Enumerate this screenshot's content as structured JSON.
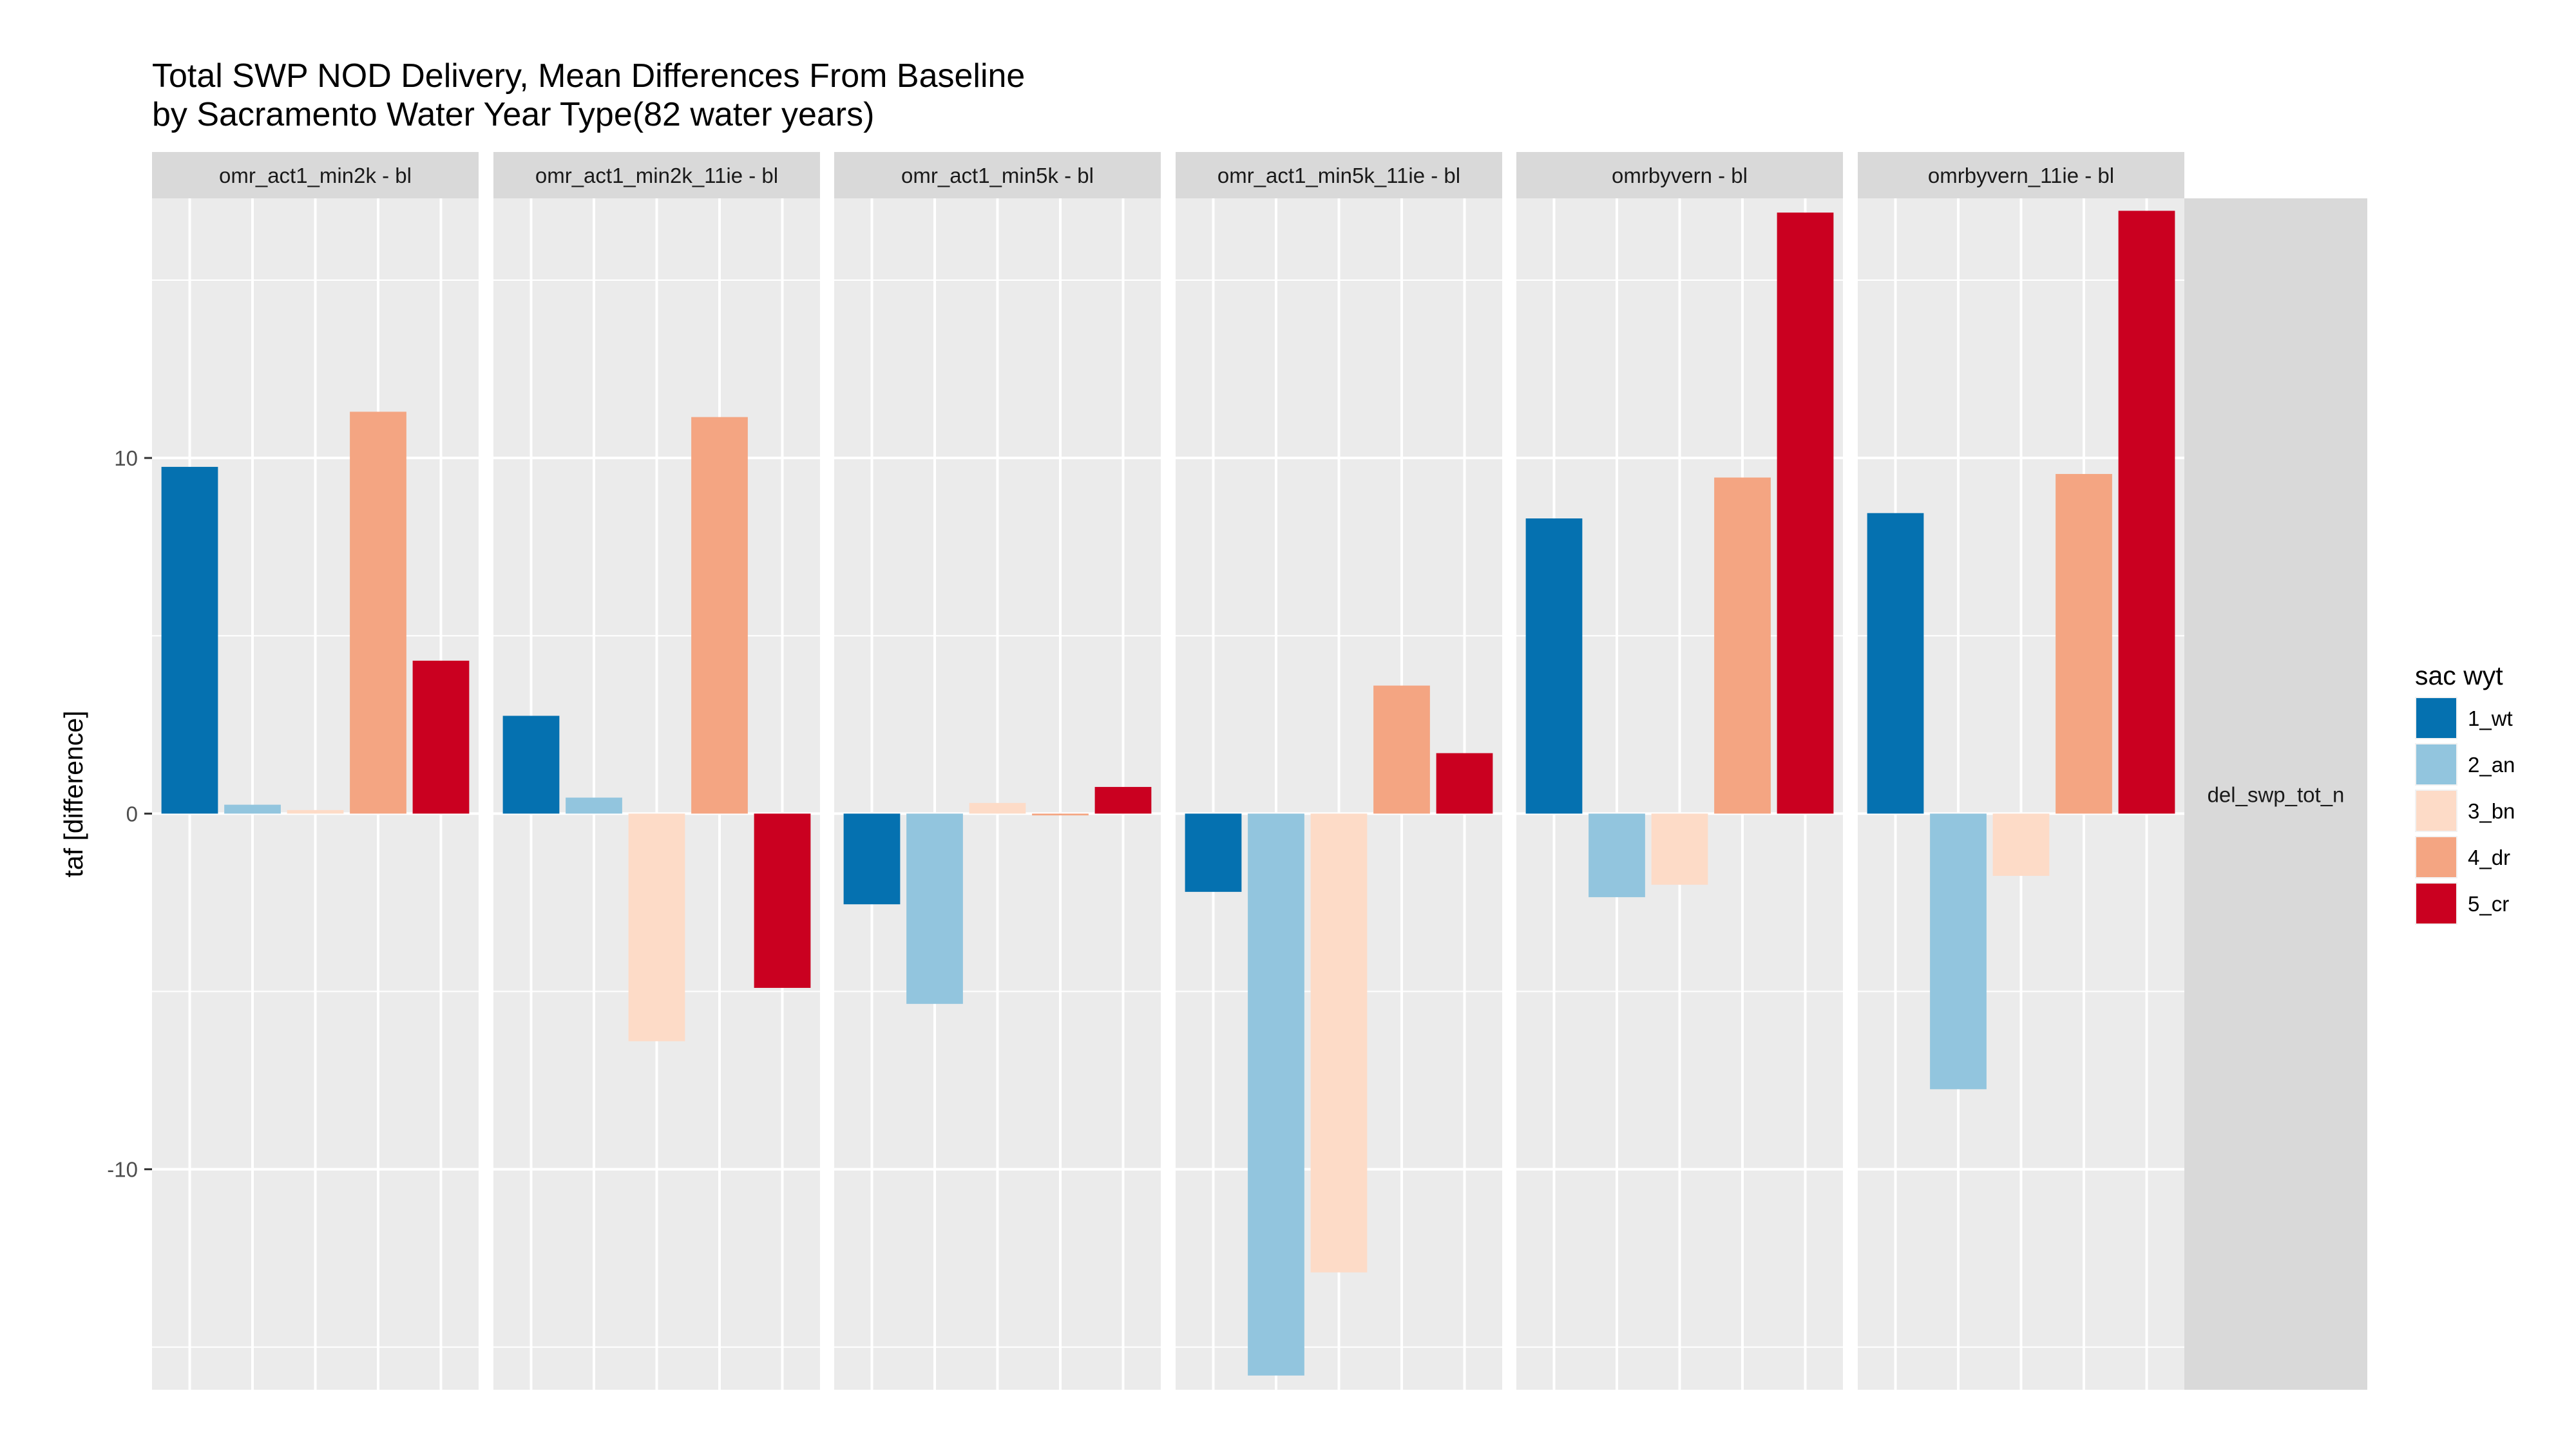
{
  "chart_data": {
    "type": "bar",
    "title": "Total SWP NOD Delivery, Mean Differences From Baseline",
    "subtitle": "by Sacramento Water Year Type(82 water years)",
    "ylabel": "taf [difference]",
    "xlabel": "",
    "ylim": [
      -16.2,
      17.3
    ],
    "y_ticks": [
      -10,
      0,
      10
    ],
    "grid": true,
    "legend": {
      "title": "sac wyt",
      "position": "right",
      "entries": [
        "1_wt",
        "2_an",
        "3_bn",
        "4_dr",
        "5_cr"
      ]
    },
    "colors": {
      "1_wt": "#0571b0",
      "2_an": "#92c5de",
      "3_bn": "#fddbc7",
      "4_dr": "#f4a582",
      "5_cr": "#ca0020"
    },
    "categories": [
      "1_wt",
      "2_an",
      "3_bn",
      "4_dr",
      "5_cr"
    ],
    "row_strip": "del_swp_tot_n",
    "panels": [
      {
        "label": "omr_act1_min2k - bl",
        "values": [
          9.75,
          0.25,
          0.1,
          11.3,
          4.3
        ]
      },
      {
        "label": "omr_act1_min2k_11ie - bl",
        "values": [
          2.75,
          0.45,
          -6.4,
          11.15,
          -4.9
        ]
      },
      {
        "label": "omr_act1_min5k - bl",
        "values": [
          -2.55,
          -5.35,
          0.3,
          -0.05,
          0.75
        ]
      },
      {
        "label": "omr_act1_min5k_11ie - bl",
        "values": [
          -2.2,
          -15.8,
          -12.9,
          3.6,
          1.7
        ]
      },
      {
        "label": "omrbyvern - bl",
        "values": [
          8.3,
          -2.35,
          -2.0,
          9.45,
          16.9
        ]
      },
      {
        "label": "omrbyvern_11ie - bl",
        "values": [
          8.45,
          -7.75,
          -1.75,
          9.55,
          16.95
        ]
      }
    ]
  }
}
